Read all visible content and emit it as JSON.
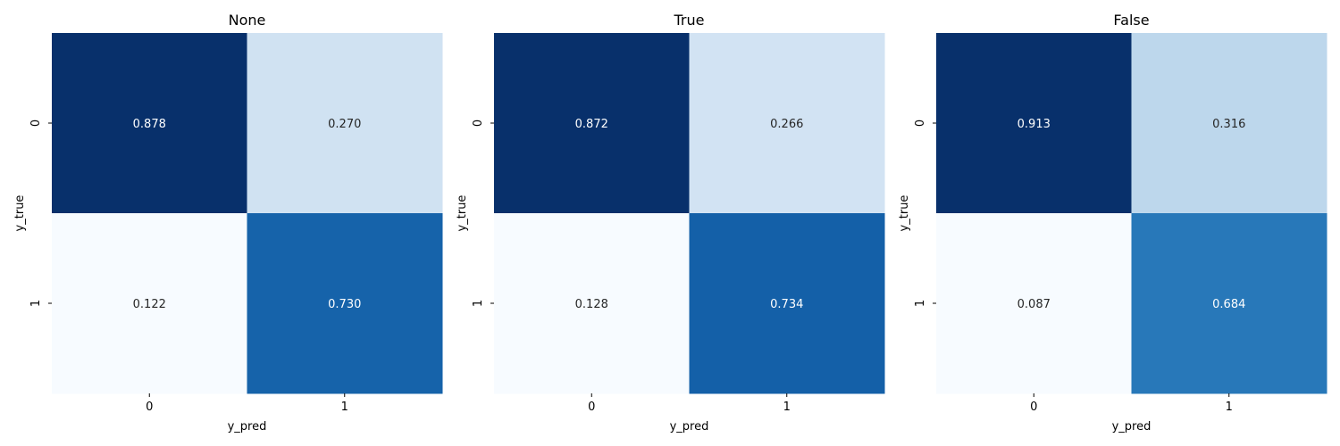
{
  "chart_data": [
    {
      "type": "heatmap",
      "title": "None",
      "xlabel": "y_pred",
      "ylabel": "y_true",
      "x_categories": [
        "0",
        "1"
      ],
      "y_categories": [
        "0",
        "1"
      ],
      "values": [
        [
          0.878,
          0.27
        ],
        [
          0.122,
          0.73
        ]
      ],
      "value_labels": [
        [
          "0.878",
          "0.270"
        ],
        [
          "0.122",
          "0.730"
        ]
      ],
      "colorbar": false,
      "colormap": "Blues"
    },
    {
      "type": "heatmap",
      "title": "True",
      "xlabel": "y_pred",
      "ylabel": "y_true",
      "x_categories": [
        "0",
        "1"
      ],
      "y_categories": [
        "0",
        "1"
      ],
      "values": [
        [
          0.872,
          0.266
        ],
        [
          0.128,
          0.734
        ]
      ],
      "value_labels": [
        [
          "0.872",
          "0.266"
        ],
        [
          "0.128",
          "0.734"
        ]
      ],
      "colorbar": false,
      "colormap": "Blues"
    },
    {
      "type": "heatmap",
      "title": "False",
      "xlabel": "y_pred",
      "ylabel": "y_true",
      "x_categories": [
        "0",
        "1"
      ],
      "y_categories": [
        "0",
        "1"
      ],
      "values": [
        [
          0.913,
          0.316
        ],
        [
          0.087,
          0.684
        ]
      ],
      "value_labels": [
        [
          "0.913",
          "0.316"
        ],
        [
          "0.087",
          "0.684"
        ]
      ],
      "colorbar": false,
      "colormap": "Blues"
    }
  ]
}
